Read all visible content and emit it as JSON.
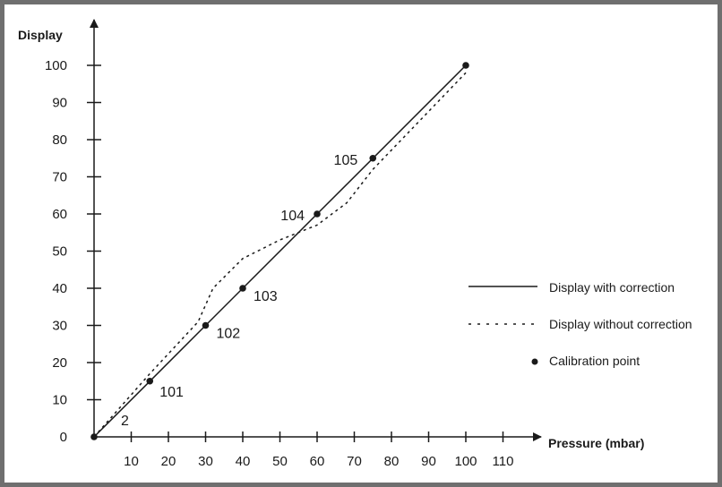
{
  "chart_data": {
    "type": "line",
    "title": "",
    "xlabel": "Pressure (mbar)",
    "ylabel": "Display",
    "xlim": [
      0,
      110
    ],
    "ylim": [
      0,
      100
    ],
    "x_ticks": [
      10,
      20,
      30,
      40,
      50,
      60,
      70,
      80,
      90,
      100,
      110
    ],
    "y_ticks": [
      0,
      10,
      20,
      30,
      40,
      50,
      60,
      70,
      80,
      90,
      100
    ],
    "grid": false,
    "legend_position": "right",
    "series": [
      {
        "name": "Display with correction",
        "style": "solid",
        "color": "#1a1a1a",
        "x": [
          0,
          15,
          30,
          40,
          60,
          75,
          100
        ],
        "y": [
          0,
          15,
          30,
          40,
          60,
          75,
          100
        ]
      },
      {
        "name": "Display without correction",
        "style": "dotted",
        "color": "#1a1a1a",
        "x": [
          0,
          15,
          28,
          32,
          40,
          50,
          60,
          68,
          75,
          100
        ],
        "y": [
          0,
          17,
          31,
          40,
          48,
          53,
          57,
          63,
          72,
          98
        ]
      },
      {
        "name": "Calibration point",
        "style": "marker",
        "color": "#1a1a1a",
        "points": [
          {
            "x": 0,
            "y": 0,
            "label": "2"
          },
          {
            "x": 15,
            "y": 15,
            "label": "101"
          },
          {
            "x": 30,
            "y": 30,
            "label": "102"
          },
          {
            "x": 40,
            "y": 40,
            "label": "103"
          },
          {
            "x": 60,
            "y": 60,
            "label": "104"
          },
          {
            "x": 75,
            "y": 75,
            "label": "105"
          },
          {
            "x": 100,
            "y": 100,
            "label": ""
          }
        ]
      }
    ]
  }
}
